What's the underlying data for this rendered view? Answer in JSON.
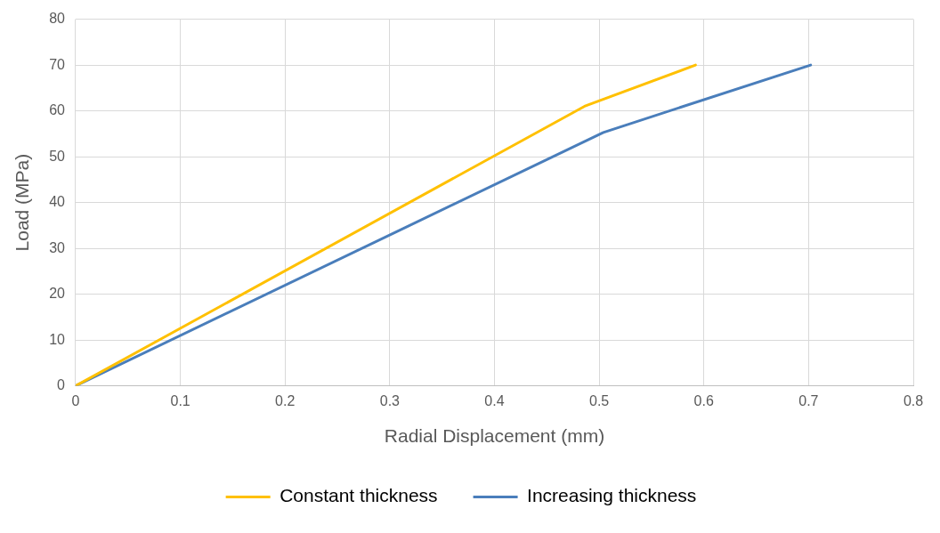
{
  "chart_data": {
    "type": "line",
    "xlabel": "Radial Displacement (mm)",
    "ylabel": "Load (MPa)",
    "series": [
      {
        "name": "Constant thickness",
        "color": "#ffc000",
        "x": [
          0,
          0.486,
          0.592
        ],
        "values": [
          0,
          61,
          70
        ]
      },
      {
        "name": "Increasing thickness",
        "color": "#4a7ebb",
        "x": [
          0,
          0.504,
          0.702
        ],
        "values": [
          0,
          55.3,
          70
        ]
      }
    ],
    "xlim": [
      0,
      0.8
    ],
    "xticks": [
      0,
      0.1,
      0.2,
      0.3,
      0.4,
      0.5,
      0.6,
      0.7,
      0.8
    ],
    "ylim": [
      0,
      80
    ],
    "yticks": [
      0,
      10,
      20,
      30,
      40,
      50,
      60,
      70,
      80
    ],
    "grid": true,
    "legend": "bottom",
    "marker": "none",
    "line_style": "solid"
  }
}
